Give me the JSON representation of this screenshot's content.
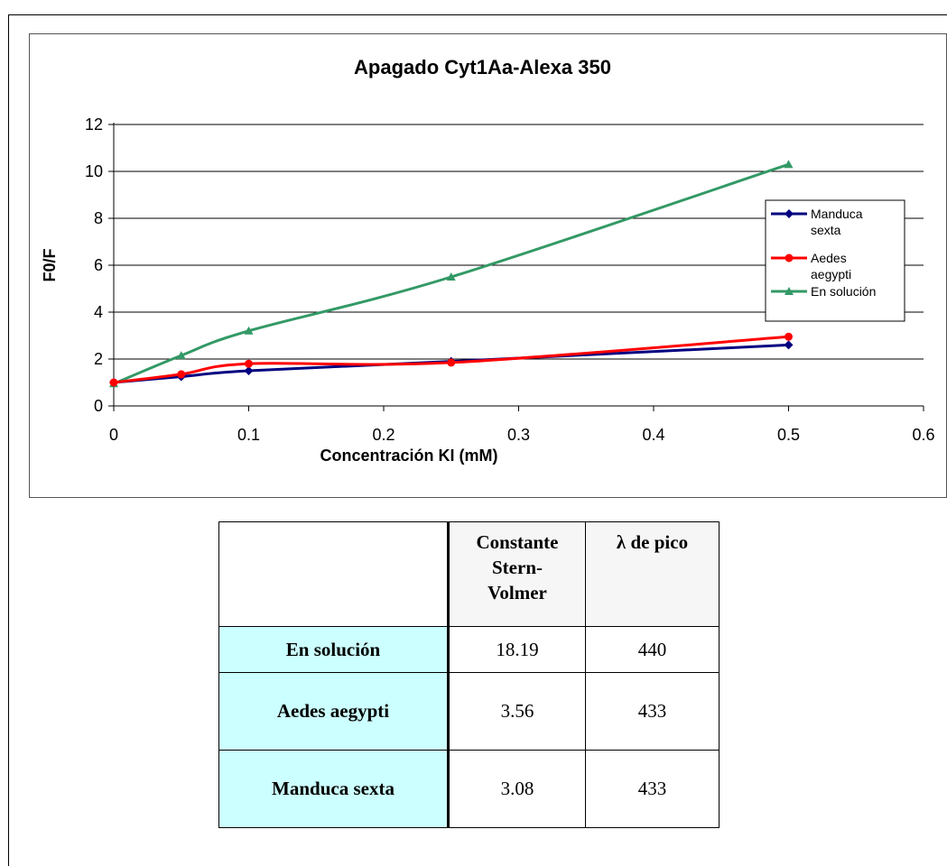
{
  "chart_data": {
    "type": "line",
    "title": "Apagado Cyt1Aa-Alexa 350",
    "xlabel": "Concentración KI (mM)",
    "ylabel": "F0/F",
    "xlim": [
      0,
      0.6
    ],
    "ylim": [
      0,
      12
    ],
    "x_ticks": [
      "0",
      "0.1",
      "0.2",
      "0.3",
      "0.4",
      "0.5",
      "0.6"
    ],
    "y_ticks": [
      "0",
      "2",
      "4",
      "6",
      "8",
      "10",
      "12"
    ],
    "grid": "horizontal",
    "legend_position": "right",
    "series": [
      {
        "name": "Manduca sexta",
        "marker": "diamond",
        "color": "#000080",
        "x": [
          0,
          0.05,
          0.1,
          0.25,
          0.5
        ],
        "y": [
          1.0,
          1.25,
          1.5,
          1.9,
          2.6
        ]
      },
      {
        "name": "Aedes aegypti",
        "marker": "circle",
        "color": "#ff0000",
        "x": [
          0,
          0.05,
          0.1,
          0.25,
          0.5
        ],
        "y": [
          1.0,
          1.35,
          1.8,
          1.85,
          2.95
        ]
      },
      {
        "name": "En solución",
        "marker": "triangle",
        "color": "#339966",
        "x": [
          0,
          0.05,
          0.1,
          0.25,
          0.5
        ],
        "y": [
          0.95,
          2.15,
          3.2,
          5.5,
          10.3
        ]
      }
    ],
    "legend_labels": [
      [
        "Manduca",
        "sexta"
      ],
      [
        "Aedes",
        "aegypti"
      ],
      [
        " En solución"
      ]
    ]
  },
  "table": {
    "headers": [
      "",
      "Constante Stern-Volmer",
      "λ de pico"
    ],
    "header_lines": {
      "c1": [
        "Constante",
        "Stern-",
        "Volmer"
      ],
      "c2": [
        "λ de pico"
      ]
    },
    "rows": [
      {
        "label": "En solución",
        "constant": "18.19",
        "peak": "440"
      },
      {
        "label": "Aedes aegypti",
        "constant": "3.56",
        "peak": "433"
      },
      {
        "label": "Manduca sexta",
        "constant": "3.08",
        "peak": "433"
      }
    ]
  }
}
